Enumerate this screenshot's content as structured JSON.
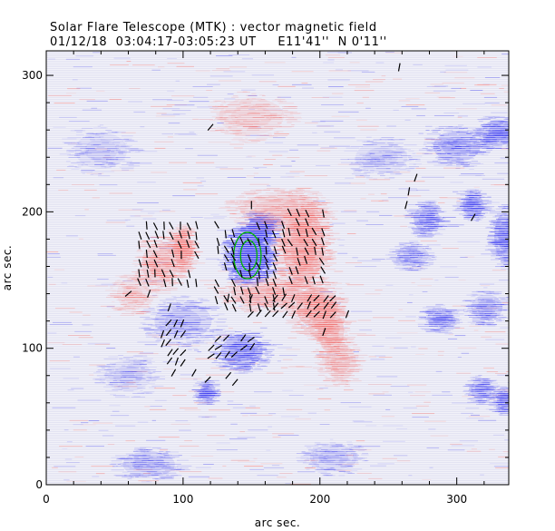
{
  "chart_data": {
    "type": "heatmap",
    "title": "Solar Flare Telescope (MTK) : vector magnetic field",
    "subtitle": "01/12/18  03:04:17-03:05:23 UT     E11'41''  N 0'11''",
    "xlabel": "arc sec.",
    "ylabel": "arc sec.",
    "xlim": [
      0,
      338
    ],
    "ylim": [
      0,
      318
    ],
    "xticks": [
      0,
      100,
      200,
      300
    ],
    "yticks": [
      0,
      100,
      200,
      300
    ],
    "colors": {
      "positive": "#f07070",
      "negative": "#3e3ef0",
      "vector": "#000000",
      "contour": "#00b400"
    },
    "positive_regions": [
      {
        "x": 100,
        "y": 173,
        "rx": 7,
        "ry": 13,
        "strength": 0.75
      },
      {
        "x": 83,
        "y": 162,
        "rx": 14,
        "ry": 16,
        "strength": 0.45
      },
      {
        "x": 188,
        "y": 175,
        "rx": 16,
        "ry": 28,
        "strength": 0.7
      },
      {
        "x": 198,
        "y": 130,
        "rx": 16,
        "ry": 16,
        "strength": 0.6
      },
      {
        "x": 208,
        "y": 112,
        "rx": 10,
        "ry": 16,
        "strength": 0.5
      },
      {
        "x": 160,
        "y": 140,
        "rx": 26,
        "ry": 10,
        "strength": 0.45
      },
      {
        "x": 170,
        "y": 202,
        "rx": 30,
        "ry": 12,
        "strength": 0.35
      },
      {
        "x": 150,
        "y": 270,
        "rx": 25,
        "ry": 14,
        "strength": 0.25
      },
      {
        "x": 215,
        "y": 90,
        "rx": 12,
        "ry": 14,
        "strength": 0.35
      },
      {
        "x": 63,
        "y": 140,
        "rx": 12,
        "ry": 12,
        "strength": 0.25
      }
    ],
    "negative_regions": [
      {
        "x": 148,
        "y": 168,
        "rx": 14,
        "ry": 17,
        "strength": 1.0
      },
      {
        "x": 157,
        "y": 188,
        "rx": 10,
        "ry": 10,
        "strength": 0.9
      },
      {
        "x": 143,
        "y": 98,
        "rx": 16,
        "ry": 12,
        "strength": 0.55
      },
      {
        "x": 118,
        "y": 68,
        "rx": 6,
        "ry": 7,
        "strength": 0.5
      },
      {
        "x": 100,
        "y": 120,
        "rx": 22,
        "ry": 14,
        "strength": 0.3
      },
      {
        "x": 300,
        "y": 248,
        "rx": 18,
        "ry": 12,
        "strength": 0.4
      },
      {
        "x": 330,
        "y": 258,
        "rx": 12,
        "ry": 10,
        "strength": 0.55
      },
      {
        "x": 278,
        "y": 195,
        "rx": 10,
        "ry": 10,
        "strength": 0.45
      },
      {
        "x": 312,
        "y": 205,
        "rx": 8,
        "ry": 9,
        "strength": 0.5
      },
      {
        "x": 335,
        "y": 182,
        "rx": 8,
        "ry": 18,
        "strength": 0.55
      },
      {
        "x": 268,
        "y": 168,
        "rx": 12,
        "ry": 8,
        "strength": 0.35
      },
      {
        "x": 288,
        "y": 122,
        "rx": 10,
        "ry": 8,
        "strength": 0.4
      },
      {
        "x": 322,
        "y": 130,
        "rx": 12,
        "ry": 10,
        "strength": 0.35
      },
      {
        "x": 318,
        "y": 70,
        "rx": 8,
        "ry": 8,
        "strength": 0.4
      },
      {
        "x": 335,
        "y": 62,
        "rx": 6,
        "ry": 8,
        "strength": 0.5
      },
      {
        "x": 75,
        "y": 15,
        "rx": 20,
        "ry": 10,
        "strength": 0.3
      },
      {
        "x": 210,
        "y": 20,
        "rx": 18,
        "ry": 10,
        "strength": 0.25
      },
      {
        "x": 40,
        "y": 245,
        "rx": 20,
        "ry": 14,
        "strength": 0.2
      },
      {
        "x": 60,
        "y": 80,
        "rx": 18,
        "ry": 12,
        "strength": 0.2
      },
      {
        "x": 245,
        "y": 240,
        "rx": 20,
        "ry": 12,
        "strength": 0.2
      }
    ],
    "contours": [
      {
        "x": 147,
        "y": 168,
        "rx": 10,
        "ry": 17
      },
      {
        "x": 148,
        "y": 168,
        "rx": 6,
        "ry": 11
      }
    ],
    "vector_groups": [
      {
        "x0": 68,
        "x1": 112,
        "y0": 148,
        "y1": 192,
        "dx": 6,
        "dy": 7,
        "angle": 105
      },
      {
        "x0": 125,
        "x1": 178,
        "y0": 130,
        "y1": 192,
        "dx": 6,
        "dy": 6,
        "angle": 110
      },
      {
        "x0": 178,
        "x1": 205,
        "y0": 150,
        "y1": 205,
        "dx": 6,
        "dy": 7,
        "angle": 110
      },
      {
        "x0": 150,
        "x1": 210,
        "y0": 125,
        "y1": 142,
        "dx": 6,
        "dy": 6,
        "angle": 55
      },
      {
        "x0": 120,
        "x1": 155,
        "y0": 95,
        "y1": 112,
        "dx": 6,
        "dy": 6,
        "angle": 45
      },
      {
        "x0": 85,
        "x1": 100,
        "y0": 90,
        "y1": 120,
        "dx": 5,
        "dy": 7,
        "angle": 60
      }
    ],
    "vector_singles": [
      {
        "x": 120,
        "y": 262,
        "angle": 50
      },
      {
        "x": 133,
        "y": 137,
        "angle": 80
      },
      {
        "x": 138,
        "y": 75,
        "angle": 50
      },
      {
        "x": 133,
        "y": 80,
        "angle": 50
      },
      {
        "x": 118,
        "y": 77,
        "angle": 45
      },
      {
        "x": 93,
        "y": 82,
        "angle": 60
      },
      {
        "x": 108,
        "y": 82,
        "angle": 60
      },
      {
        "x": 265,
        "y": 215,
        "angle": 80
      },
      {
        "x": 263,
        "y": 205,
        "angle": 75
      },
      {
        "x": 270,
        "y": 225,
        "angle": 70
      },
      {
        "x": 312,
        "y": 196,
        "angle": 60
      },
      {
        "x": 258,
        "y": 306,
        "angle": 80
      },
      {
        "x": 150,
        "y": 205,
        "angle": 90
      },
      {
        "x": 90,
        "y": 130,
        "angle": 70
      },
      {
        "x": 60,
        "y": 140,
        "angle": 40
      },
      {
        "x": 75,
        "y": 140,
        "angle": 70
      },
      {
        "x": 220,
        "y": 125,
        "angle": 70
      },
      {
        "x": 203,
        "y": 112,
        "angle": 70
      }
    ]
  }
}
